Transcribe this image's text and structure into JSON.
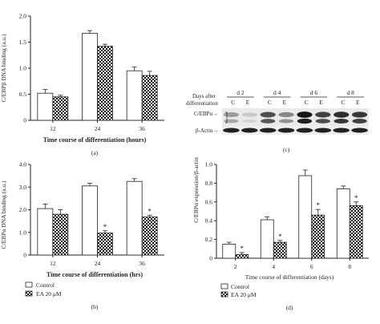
{
  "chart_data": [
    {
      "id": "a",
      "type": "bar",
      "panel_label": "(a)",
      "ylabel": "C/EBPβ DNA binding (a.u.)",
      "xlabel": "Time course of differentiation (hours)",
      "categories": [
        "12",
        "24",
        "36"
      ],
      "ylim": [
        0,
        2.0
      ],
      "yticks": [
        "0",
        "0.5",
        "1.0",
        "1.5",
        "2.0"
      ],
      "series": [
        {
          "style": "white",
          "values": [
            0.52,
            1.67,
            0.95
          ],
          "errors": [
            0.07,
            0.05,
            0.07
          ]
        },
        {
          "style": "checker",
          "values": [
            0.45,
            1.42,
            0.86
          ],
          "errors": [
            0.03,
            0.04,
            0.08
          ]
        }
      ],
      "stars": []
    },
    {
      "id": "b",
      "type": "bar",
      "panel_label": "(b)",
      "ylabel": "C/EBPα DNA binding (a.u.)",
      "xlabel": "Time course of differentiation (hrs)",
      "categories": [
        "12",
        "24",
        "36"
      ],
      "ylim": [
        0,
        4.0
      ],
      "yticks": [
        "0",
        "1.0",
        "2.0",
        "3.0",
        "4.0"
      ],
      "series": [
        {
          "style": "white",
          "values": [
            2.05,
            3.05,
            3.25
          ],
          "errors": [
            0.2,
            0.12,
            0.12
          ]
        },
        {
          "style": "checker",
          "values": [
            1.8,
            0.97,
            1.68
          ],
          "errors": [
            0.2,
            0.1,
            0.08
          ]
        }
      ],
      "stars": [
        [
          1,
          1
        ],
        [
          2,
          1
        ]
      ],
      "legend": [
        "Control",
        "EA 20 μM"
      ]
    },
    {
      "id": "d",
      "type": "bar",
      "panel_label": "(d)",
      "ylabel": "C/EBPα expression/β-actin",
      "xlabel": "Time course of differentiation (days)",
      "categories": [
        "2",
        "4",
        "6",
        "8"
      ],
      "ylim": [
        0,
        1.0
      ],
      "yticks": [
        "0",
        "0.2",
        "0.4",
        "0.6",
        "0.8",
        "1.0"
      ],
      "series": [
        {
          "style": "white",
          "values": [
            0.15,
            0.41,
            0.88,
            0.74
          ],
          "errors": [
            0.02,
            0.03,
            0.06,
            0.03
          ]
        },
        {
          "style": "checker",
          "values": [
            0.04,
            0.17,
            0.46,
            0.56
          ],
          "errors": [
            0.02,
            0.02,
            0.06,
            0.04
          ]
        }
      ],
      "stars": [
        [
          0,
          1
        ],
        [
          1,
          1
        ],
        [
          2,
          1
        ],
        [
          3,
          1
        ]
      ],
      "legend": [
        "Control",
        "EA 20 μM"
      ]
    }
  ],
  "star_symbol": "*",
  "blot": {
    "panel_label": "(c)",
    "days_after_label": "Days after",
    "differentiation_label": "differentiation",
    "days": [
      "d 2",
      "d 4",
      "d 6",
      "d 8"
    ],
    "lane_labels": [
      "C",
      "E"
    ],
    "row_labels": [
      "C/EBPα→",
      "β-Actin→"
    ],
    "band_intensity_top": [
      0.35,
      0.15,
      0.7,
      0.45,
      0.95,
      0.75,
      0.85,
      0.8
    ],
    "band_intensity_bottom": [
      0.9,
      0.9,
      0.9,
      0.9,
      0.9,
      0.9,
      0.9,
      0.9
    ]
  }
}
